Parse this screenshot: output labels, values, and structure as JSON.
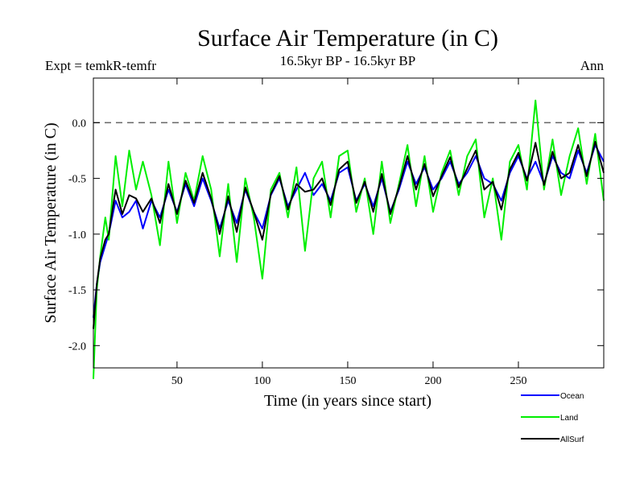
{
  "chart_data": {
    "type": "line",
    "title": "Surface Air Temperature (in C)",
    "subtitle_left": "Expt = temkR-temfr",
    "subtitle_center": "16.5kyr BP - 16.5kyr BP",
    "subtitle_right": "Ann",
    "xlabel": "Time (in years since start)",
    "ylabel": "Surface Air Temperature (in C)",
    "xlim": [
      1,
      300
    ],
    "ylim": [
      -2.2,
      0.4
    ],
    "xticks": [
      50,
      100,
      150,
      200,
      250
    ],
    "xtick_labels": [
      "50",
      "100",
      "150",
      "200",
      "250"
    ],
    "yticks": [
      0.0,
      -0.5,
      -1.0,
      -1.5,
      -2.0
    ],
    "ytick_labels": [
      "0.0",
      "-0.5",
      "-1.0",
      "-1.5",
      "-2.0"
    ],
    "reference_line": 0.0,
    "legend_position": "bottom-right, below plot",
    "series": [
      {
        "name": "Ocean",
        "color": "#0000ff",
        "x": [
          1,
          3,
          5,
          8,
          10,
          14,
          18,
          22,
          26,
          30,
          35,
          40,
          45,
          50,
          55,
          60,
          65,
          70,
          75,
          80,
          85,
          90,
          95,
          100,
          105,
          110,
          115,
          120,
          125,
          130,
          135,
          140,
          145,
          150,
          155,
          160,
          165,
          170,
          175,
          180,
          185,
          190,
          195,
          200,
          205,
          210,
          215,
          220,
          225,
          230,
          235,
          240,
          245,
          250,
          255,
          260,
          265,
          270,
          275,
          280,
          285,
          290,
          295,
          300
        ],
        "values": [
          -1.75,
          -1.45,
          -1.25,
          -1.1,
          -1.0,
          -0.7,
          -0.85,
          -0.8,
          -0.7,
          -0.95,
          -0.7,
          -0.85,
          -0.6,
          -0.8,
          -0.55,
          -0.75,
          -0.5,
          -0.7,
          -0.95,
          -0.7,
          -0.9,
          -0.6,
          -0.8,
          -0.95,
          -0.65,
          -0.5,
          -0.75,
          -0.6,
          -0.45,
          -0.65,
          -0.55,
          -0.7,
          -0.45,
          -0.4,
          -0.7,
          -0.55,
          -0.75,
          -0.5,
          -0.8,
          -0.6,
          -0.35,
          -0.55,
          -0.4,
          -0.6,
          -0.5,
          -0.35,
          -0.55,
          -0.45,
          -0.3,
          -0.5,
          -0.55,
          -0.7,
          -0.45,
          -0.3,
          -0.5,
          -0.35,
          -0.55,
          -0.3,
          -0.45,
          -0.5,
          -0.25,
          -0.45,
          -0.2,
          -0.35
        ]
      },
      {
        "name": "Land",
        "color": "#00ee00",
        "x": [
          1,
          3,
          5,
          8,
          10,
          14,
          18,
          22,
          26,
          30,
          35,
          40,
          45,
          50,
          55,
          60,
          65,
          70,
          75,
          80,
          85,
          90,
          95,
          100,
          105,
          110,
          115,
          120,
          125,
          130,
          135,
          140,
          145,
          150,
          155,
          160,
          165,
          170,
          175,
          180,
          185,
          190,
          195,
          200,
          205,
          210,
          215,
          220,
          225,
          230,
          235,
          240,
          245,
          250,
          255,
          260,
          265,
          270,
          275,
          280,
          285,
          290,
          295,
          300
        ],
        "values": [
          -2.3,
          -1.5,
          -1.2,
          -0.85,
          -1.05,
          -0.3,
          -0.75,
          -0.25,
          -0.6,
          -0.35,
          -0.65,
          -1.1,
          -0.35,
          -0.9,
          -0.45,
          -0.7,
          -0.3,
          -0.6,
          -1.2,
          -0.55,
          -1.25,
          -0.5,
          -0.85,
          -1.4,
          -0.6,
          -0.45,
          -0.85,
          -0.4,
          -1.15,
          -0.5,
          -0.35,
          -0.85,
          -0.3,
          -0.25,
          -0.8,
          -0.5,
          -1.0,
          -0.35,
          -0.9,
          -0.55,
          -0.2,
          -0.75,
          -0.3,
          -0.8,
          -0.45,
          -0.25,
          -0.65,
          -0.3,
          -0.15,
          -0.85,
          -0.5,
          -1.05,
          -0.35,
          -0.2,
          -0.6,
          0.2,
          -0.6,
          -0.15,
          -0.65,
          -0.3,
          -0.05,
          -0.55,
          -0.1,
          -0.7
        ]
      },
      {
        "name": "AllSurf",
        "color": "#000000",
        "x": [
          1,
          3,
          5,
          8,
          10,
          14,
          18,
          22,
          26,
          30,
          35,
          40,
          45,
          50,
          55,
          60,
          65,
          70,
          75,
          80,
          85,
          90,
          95,
          100,
          105,
          110,
          115,
          120,
          125,
          130,
          135,
          140,
          145,
          150,
          155,
          160,
          165,
          170,
          175,
          180,
          185,
          190,
          195,
          200,
          205,
          210,
          215,
          220,
          225,
          230,
          235,
          240,
          245,
          250,
          255,
          260,
          265,
          270,
          275,
          280,
          285,
          290,
          295,
          300
        ],
        "values": [
          -1.85,
          -1.45,
          -1.22,
          -1.05,
          -1.0,
          -0.6,
          -0.82,
          -0.65,
          -0.68,
          -0.8,
          -0.68,
          -0.9,
          -0.55,
          -0.82,
          -0.52,
          -0.72,
          -0.45,
          -0.68,
          -1.0,
          -0.66,
          -0.98,
          -0.58,
          -0.8,
          -1.05,
          -0.64,
          -0.48,
          -0.78,
          -0.55,
          -0.62,
          -0.6,
          -0.5,
          -0.74,
          -0.42,
          -0.35,
          -0.72,
          -0.53,
          -0.8,
          -0.46,
          -0.82,
          -0.58,
          -0.3,
          -0.6,
          -0.37,
          -0.66,
          -0.48,
          -0.31,
          -0.58,
          -0.41,
          -0.25,
          -0.6,
          -0.53,
          -0.78,
          -0.42,
          -0.27,
          -0.52,
          -0.18,
          -0.56,
          -0.26,
          -0.5,
          -0.45,
          -0.2,
          -0.48,
          -0.17,
          -0.45
        ]
      }
    ]
  }
}
